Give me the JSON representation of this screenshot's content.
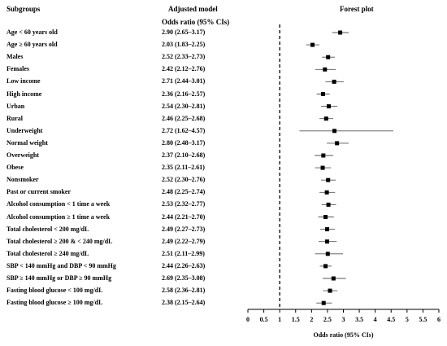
{
  "headers": {
    "subgroups": "Subgroups",
    "adjusted_model": "Adjusted model",
    "odds_ratio_ci": "Odds ratio (95% CIs)",
    "forest_plot": "Forest plot"
  },
  "chart_data": {
    "type": "forest",
    "xlabel": "Odds ratio (95% CIs)",
    "xlim": [
      0,
      6
    ],
    "xticks": [
      "0",
      "0.5",
      "1",
      "1.5",
      "2",
      "2.5",
      "3",
      "3.5",
      "4",
      "4.5",
      "5",
      "5.5",
      "6"
    ],
    "reference_line": 1,
    "rows": [
      {
        "label": "Age < 60 years old",
        "text": "2.90 (2.65–3.17)",
        "or": 2.9,
        "lo": 2.65,
        "hi": 3.17
      },
      {
        "label": "Age ≥ 60 years old",
        "text": "2.03 (1.83–2.25)",
        "or": 2.03,
        "lo": 1.83,
        "hi": 2.25
      },
      {
        "label": "Males",
        "text": "2.52 (2.33–2.73)",
        "or": 2.52,
        "lo": 2.33,
        "hi": 2.73
      },
      {
        "label": "Females",
        "text": "2.42 (2.12–2.76)",
        "or": 2.42,
        "lo": 2.12,
        "hi": 2.76
      },
      {
        "label": "Low income",
        "text": "2.71 (2.44–3.01)",
        "or": 2.71,
        "lo": 2.44,
        "hi": 3.01
      },
      {
        "label": "High income",
        "text": "2.36 (2.16–2.57)",
        "or": 2.36,
        "lo": 2.16,
        "hi": 2.57
      },
      {
        "label": "Urban",
        "text": "2.54 (2.30–2.81)",
        "or": 2.54,
        "lo": 2.3,
        "hi": 2.81
      },
      {
        "label": "Rural",
        "text": "2.46 (2.25–2.68)",
        "or": 2.46,
        "lo": 2.25,
        "hi": 2.68
      },
      {
        "label": "Underweight",
        "text": "2.72 (1.62–4.57)",
        "or": 2.72,
        "lo": 1.62,
        "hi": 4.57
      },
      {
        "label": "Normal weight",
        "text": "2.80 (2.48–3.17)",
        "or": 2.8,
        "lo": 2.48,
        "hi": 3.17
      },
      {
        "label": "Overweight",
        "text": "2.37 (2.10–2.68)",
        "or": 2.37,
        "lo": 2.1,
        "hi": 2.68
      },
      {
        "label": "Obese",
        "text": "2.35 (2.11–2.61)",
        "or": 2.35,
        "lo": 2.11,
        "hi": 2.61
      },
      {
        "label": "Nonsmoker",
        "text": "2.52 (2.30–2.76)",
        "or": 2.52,
        "lo": 2.3,
        "hi": 2.76
      },
      {
        "label": "Past or current smoker",
        "text": "2.48 (2.25–2.74)",
        "or": 2.48,
        "lo": 2.25,
        "hi": 2.74
      },
      {
        "label": "Alcohol consumption < 1 time a week",
        "text": "2.53 (2.32–2.77)",
        "or": 2.53,
        "lo": 2.32,
        "hi": 2.77
      },
      {
        "label": "Alcohol consumption ≥ 1 time a week",
        "text": "2.44 (2.21–2.70)",
        "or": 2.44,
        "lo": 2.21,
        "hi": 2.7
      },
      {
        "label": "Total cholesterol < 200 mg/dL",
        "text": "2.49 (2.27–2.73)",
        "or": 2.49,
        "lo": 2.27,
        "hi": 2.73
      },
      {
        "label": "Total cholesterol ≥ 200 & < 240 mg/dL",
        "text": "2.49 (2.22–2.79)",
        "or": 2.49,
        "lo": 2.22,
        "hi": 2.79
      },
      {
        "label": "Total cholesterol ≥ 240 mg/dL",
        "text": "2.51 (2.11–2.99)",
        "or": 2.51,
        "lo": 2.11,
        "hi": 2.99
      },
      {
        "label": "SBP < 140 mmHg and DBP < 90 mmHg",
        "text": "2.44 (2.26–2.63)",
        "or": 2.44,
        "lo": 2.26,
        "hi": 2.63
      },
      {
        "label": "SBP ≥ 140 mmHg or DBP ≥ 90 mmHg",
        "text": "2.69 (2.35–3.08)",
        "or": 2.69,
        "lo": 2.35,
        "hi": 3.08
      },
      {
        "label": "Fasting blood glucose < 100 mg/dL",
        "text": "2.58 (2.36–2.81)",
        "or": 2.58,
        "lo": 2.36,
        "hi": 2.81
      },
      {
        "label": "Fasting blood glucose ≥ 100 mg/dL",
        "text": "2.38 (2.15–2.64)",
        "or": 2.38,
        "lo": 2.15,
        "hi": 2.64
      }
    ]
  }
}
